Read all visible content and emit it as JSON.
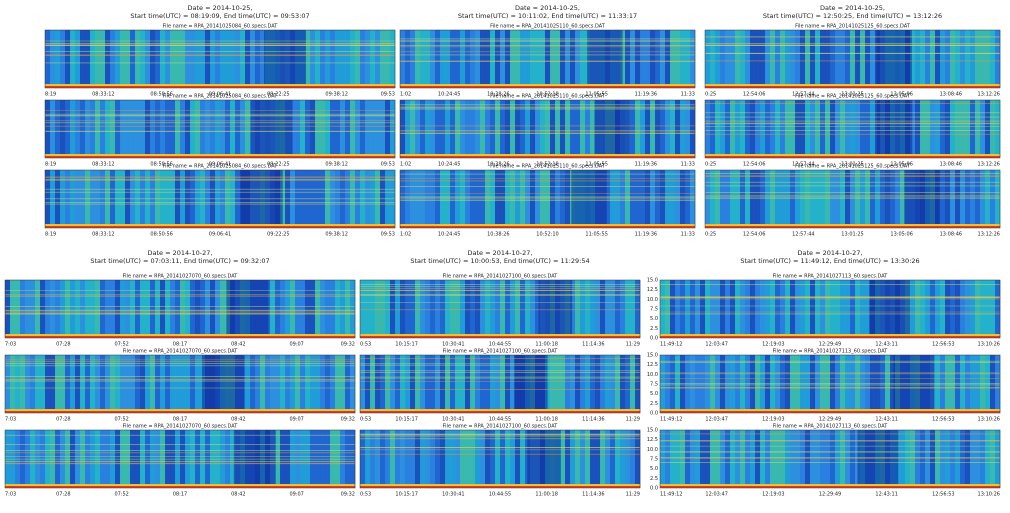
{
  "panels": [
    {
      "title": [
        "Date = 2014-10-25,",
        "Start time(UTC) = 08:19:09, End time(UTC) = 09:53:07"
      ],
      "xticks": [
        "8:19",
        "08:33:12",
        "08:50:56",
        "09:06:41",
        "09:22:25",
        "09:38:12",
        "09:53"
      ],
      "files": [
        "File name = RPA_20141025084_60.specs.DAT",
        "File name = RPA_20141025084_60.specs.DAT",
        "File name = RPA_20141025084_60.specs.DAT"
      ]
    },
    {
      "title": [
        "Date = 2014-10-25,",
        "Start time(UTC) = 10:11:02, End time(UTC) = 11:33:17"
      ],
      "xticks": [
        "1:02",
        "10:24:45",
        "10:38:26",
        "10:52:10",
        "11:05:55",
        "11:19:36",
        "11:33"
      ],
      "files": [
        "File name = RPA_20141025110_60.specs.DAT",
        "File name = RPA_20141025110_60.specs.DAT",
        "File name = RPA_20141025110_60.specs.DAT"
      ]
    },
    {
      "title": [
        "Date = 2014-10-25,",
        "Start time(UTC) = 12:50:25, End time(UTC) = 13:12:26"
      ],
      "xticks": [
        "0:25",
        "12:54:06",
        "12:57:44",
        "13:01:25",
        "13:05:06",
        "13:08:46",
        "13:12:26"
      ],
      "files": [
        "File name = RPA_20141025125_60.specs.DAT",
        "File name = RPA_20141025125_60.specs.DAT",
        "File name = RPA_20141025125_60.specs.DAT"
      ]
    },
    {
      "title": [
        "Date = 2014-10-27,",
        "Start time(UTC) = 07:03:11, End time(UTC) = 09:32:07"
      ],
      "xticks": [
        "7:03",
        "07:28",
        "07:52",
        "08:17",
        "08:42",
        "09:07",
        "09:32"
      ],
      "files": [
        "File name = RPA_20141027070_60.specs.DAT",
        "File name = RPA_20141027070_60.specs.DAT",
        "File name = RPA_20141027070_60.specs.DAT"
      ]
    },
    {
      "title": [
        "Date = 2014-10-27,",
        "Start time(UTC) = 10:00:53, End time(UTC) = 11:29:54"
      ],
      "xticks": [
        "0:53",
        "10:15:17",
        "10:30:41",
        "10:44:55",
        "11:00:18",
        "11:14:36",
        "11:29"
      ],
      "files": [
        "File name = RPA_20141027100_60.specs.DAT",
        "File name = RPA_20141027100_60.specs.DAT",
        "File name = RPA_20141027100_60.specs.DAT"
      ]
    },
    {
      "title": [
        "Date = 2014-10-27,",
        "Start time(UTC) = 11:49:12, End time(UTC) = 13:30:26"
      ],
      "xticks": [
        "11:49:12",
        "12:03:47",
        "12:19:03",
        "12:29:49",
        "12:43:11",
        "12:56:53",
        "13:10:26"
      ],
      "yticks": [
        "15.0",
        "12.5",
        "10.0",
        "7.5",
        "5.0",
        "2.5",
        "0.0"
      ],
      "files": [
        "File name = RPA_20141027113_60.specs.DAT",
        "File name = RPA_20141027113_60.specs.DAT",
        "File name = RPA_20141027113_60.specs.DAT"
      ]
    }
  ]
}
